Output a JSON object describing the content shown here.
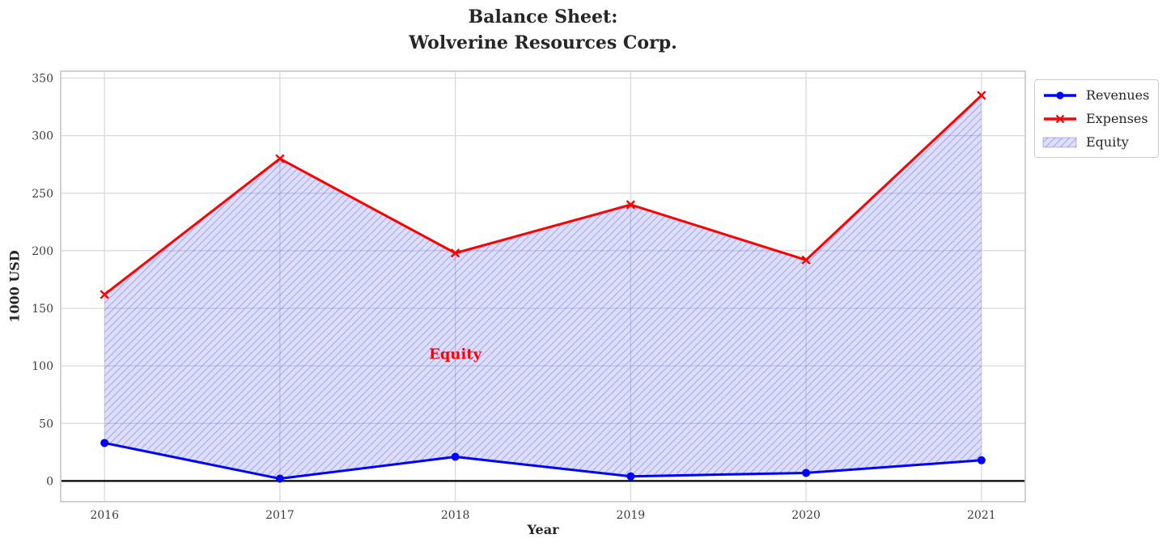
{
  "chart_data": {
    "type": "line",
    "title": "Balance Sheet:\nWolverine Resources Corp.",
    "xlabel": "Year",
    "ylabel": "1000 USD",
    "x": [
      2016,
      2017,
      2018,
      2019,
      2020,
      2021
    ],
    "xlim": [
      2015.75,
      2021.25
    ],
    "ylim": [
      -18,
      356
    ],
    "yticks": [
      0,
      50,
      100,
      150,
      200,
      250,
      300,
      350
    ],
    "grid": true,
    "series": [
      {
        "name": "Revenues",
        "color": "#0000ff",
        "marker": "circle",
        "values": [
          33,
          2,
          21,
          4,
          7,
          18
        ]
      },
      {
        "name": "Expenses",
        "color": "#ff0000",
        "marker": "x",
        "values": [
          162,
          280,
          198,
          240,
          192,
          335
        ]
      }
    ],
    "area": {
      "name": "Equity",
      "between": [
        "Revenues",
        "Expenses"
      ],
      "fill_color": "rgba(0,0,255,0.13)",
      "hatch_color": "rgba(80,80,220,0.38)"
    },
    "annotation": {
      "text": "Equity",
      "color": "#ff0000",
      "x": 2018,
      "y": 110
    },
    "legend": {
      "position": "upper right outside",
      "items": [
        "Revenues",
        "Expenses",
        "Equity"
      ]
    },
    "colors": {
      "grid": "#d9d9d9",
      "spine": "#cccccc",
      "zero_line": "#000000",
      "tick_label": "#3d3d3d",
      "title": "#262626"
    }
  }
}
